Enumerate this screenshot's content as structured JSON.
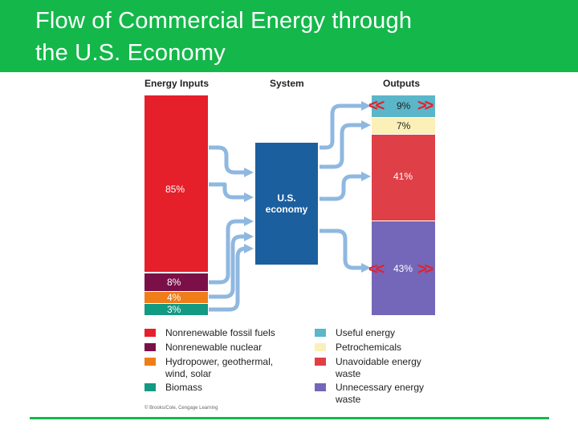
{
  "header": {
    "title_line1": "Flow of Commercial Energy through",
    "title_line2": "the U.S. Economy"
  },
  "columns": {
    "inputs": "Energy Inputs",
    "system": "System",
    "outputs": "Outputs"
  },
  "inputs": [
    {
      "label": "85%",
      "color": "#e5202a",
      "legend": "Nonrenewable fossil fuels"
    },
    {
      "label": "8%",
      "color": "#7b1048",
      "legend": "Nonrenewable nuclear"
    },
    {
      "label": "4%",
      "color": "#ef7d1a",
      "legend_line1": "Hydropower, geothermal,",
      "legend_line2": "wind, solar"
    },
    {
      "label": "3%",
      "color": "#139a82",
      "legend": "Biomass"
    }
  ],
  "system": {
    "line1": "U.S.",
    "line2": "economy",
    "color": "#1b5f9e"
  },
  "outputs": [
    {
      "label": "9%",
      "color": "#5bb6c9",
      "legend": "Useful energy"
    },
    {
      "label": "7%",
      "color": "#faf0b8",
      "legend": "Petrochemicals"
    },
    {
      "label": "41%",
      "color": "#df3f47",
      "legend_line1": "Unavoidable energy",
      "legend_line2": "waste"
    },
    {
      "label": "43%",
      "color": "#7466b8",
      "legend_line1": "Unnecessary energy",
      "legend_line2": "waste"
    }
  ],
  "nav": {
    "prev": "<<",
    "next": ">>"
  },
  "credit": "© Brooks/Cole, Cengage Learning",
  "colors": {
    "header_green": "#14b84a",
    "arrow_blue": "#8fb8e0",
    "nav_red": "#e5202a"
  }
}
